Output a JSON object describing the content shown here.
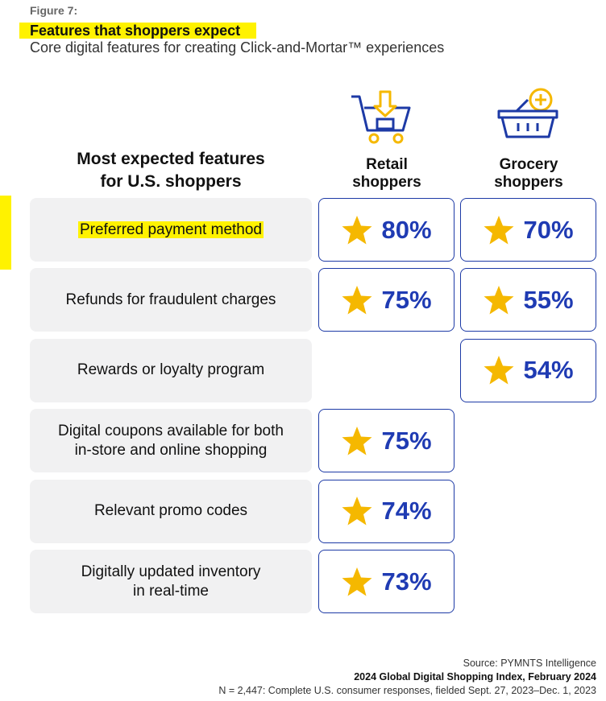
{
  "figure_label": "Figure 7:",
  "title": "Features that shoppers expect",
  "subtitle": "Core digital features for creating Click-and-Mortar™ experiences",
  "table": {
    "row_header": [
      "Most expected features",
      "for U.S. shoppers"
    ],
    "columns": [
      [
        "Retail",
        "shoppers"
      ],
      [
        "Grocery",
        "shoppers"
      ]
    ],
    "rows": [
      {
        "feature": [
          "Preferred payment method"
        ],
        "cells": [
          "80%",
          "70%"
        ]
      },
      {
        "feature": [
          "Refunds for fraudulent charges"
        ],
        "cells": [
          "75%",
          "55%"
        ]
      },
      {
        "feature": [
          "Rewards or loyalty program"
        ],
        "cells": [
          null,
          "54%"
        ]
      },
      {
        "feature": [
          "Digital coupons available for both",
          "in-store and online shopping"
        ],
        "cells": [
          "75%",
          null
        ]
      },
      {
        "feature": [
          "Relevant promo codes"
        ],
        "cells": [
          "74%",
          null
        ]
      },
      {
        "feature": [
          "Digitally updated inventory",
          "in real-time"
        ],
        "cells": [
          "73%",
          null
        ]
      }
    ]
  },
  "source": [
    "Source: PYMNTS Intelligence",
    "2024 Global Digital Shopping Index, February 2024",
    "N = 2,447: Complete U.S. consumer responses, fielded Sept. 27, 2023–Dec. 1, 2023"
  ]
}
